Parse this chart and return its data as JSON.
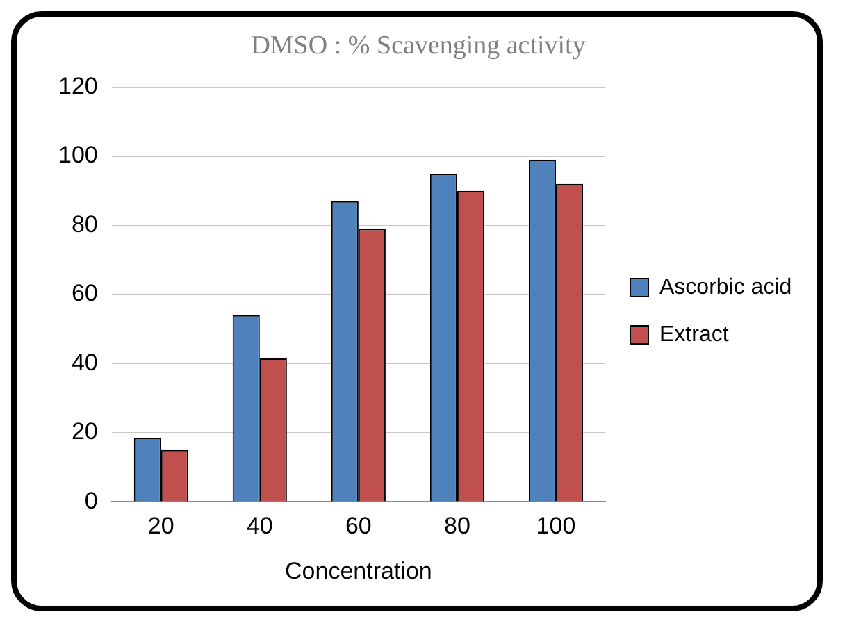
{
  "chart_data": {
    "type": "bar",
    "title": "DMSO : % Scavenging activity",
    "xlabel": "Concentration",
    "categories": [
      "20",
      "40",
      "60",
      "80",
      "100"
    ],
    "series": [
      {
        "name": "Ascorbic acid",
        "color": "#4f81bd",
        "values": [
          18.5,
          54,
          87,
          95,
          99
        ]
      },
      {
        "name": "Extract",
        "color": "#c0504d",
        "values": [
          15,
          41.5,
          79,
          90,
          92
        ]
      }
    ],
    "ylim": [
      0,
      120
    ],
    "yticks": [
      0,
      20,
      40,
      60,
      80,
      100,
      120
    ],
    "grid": "y",
    "legend": "right"
  }
}
